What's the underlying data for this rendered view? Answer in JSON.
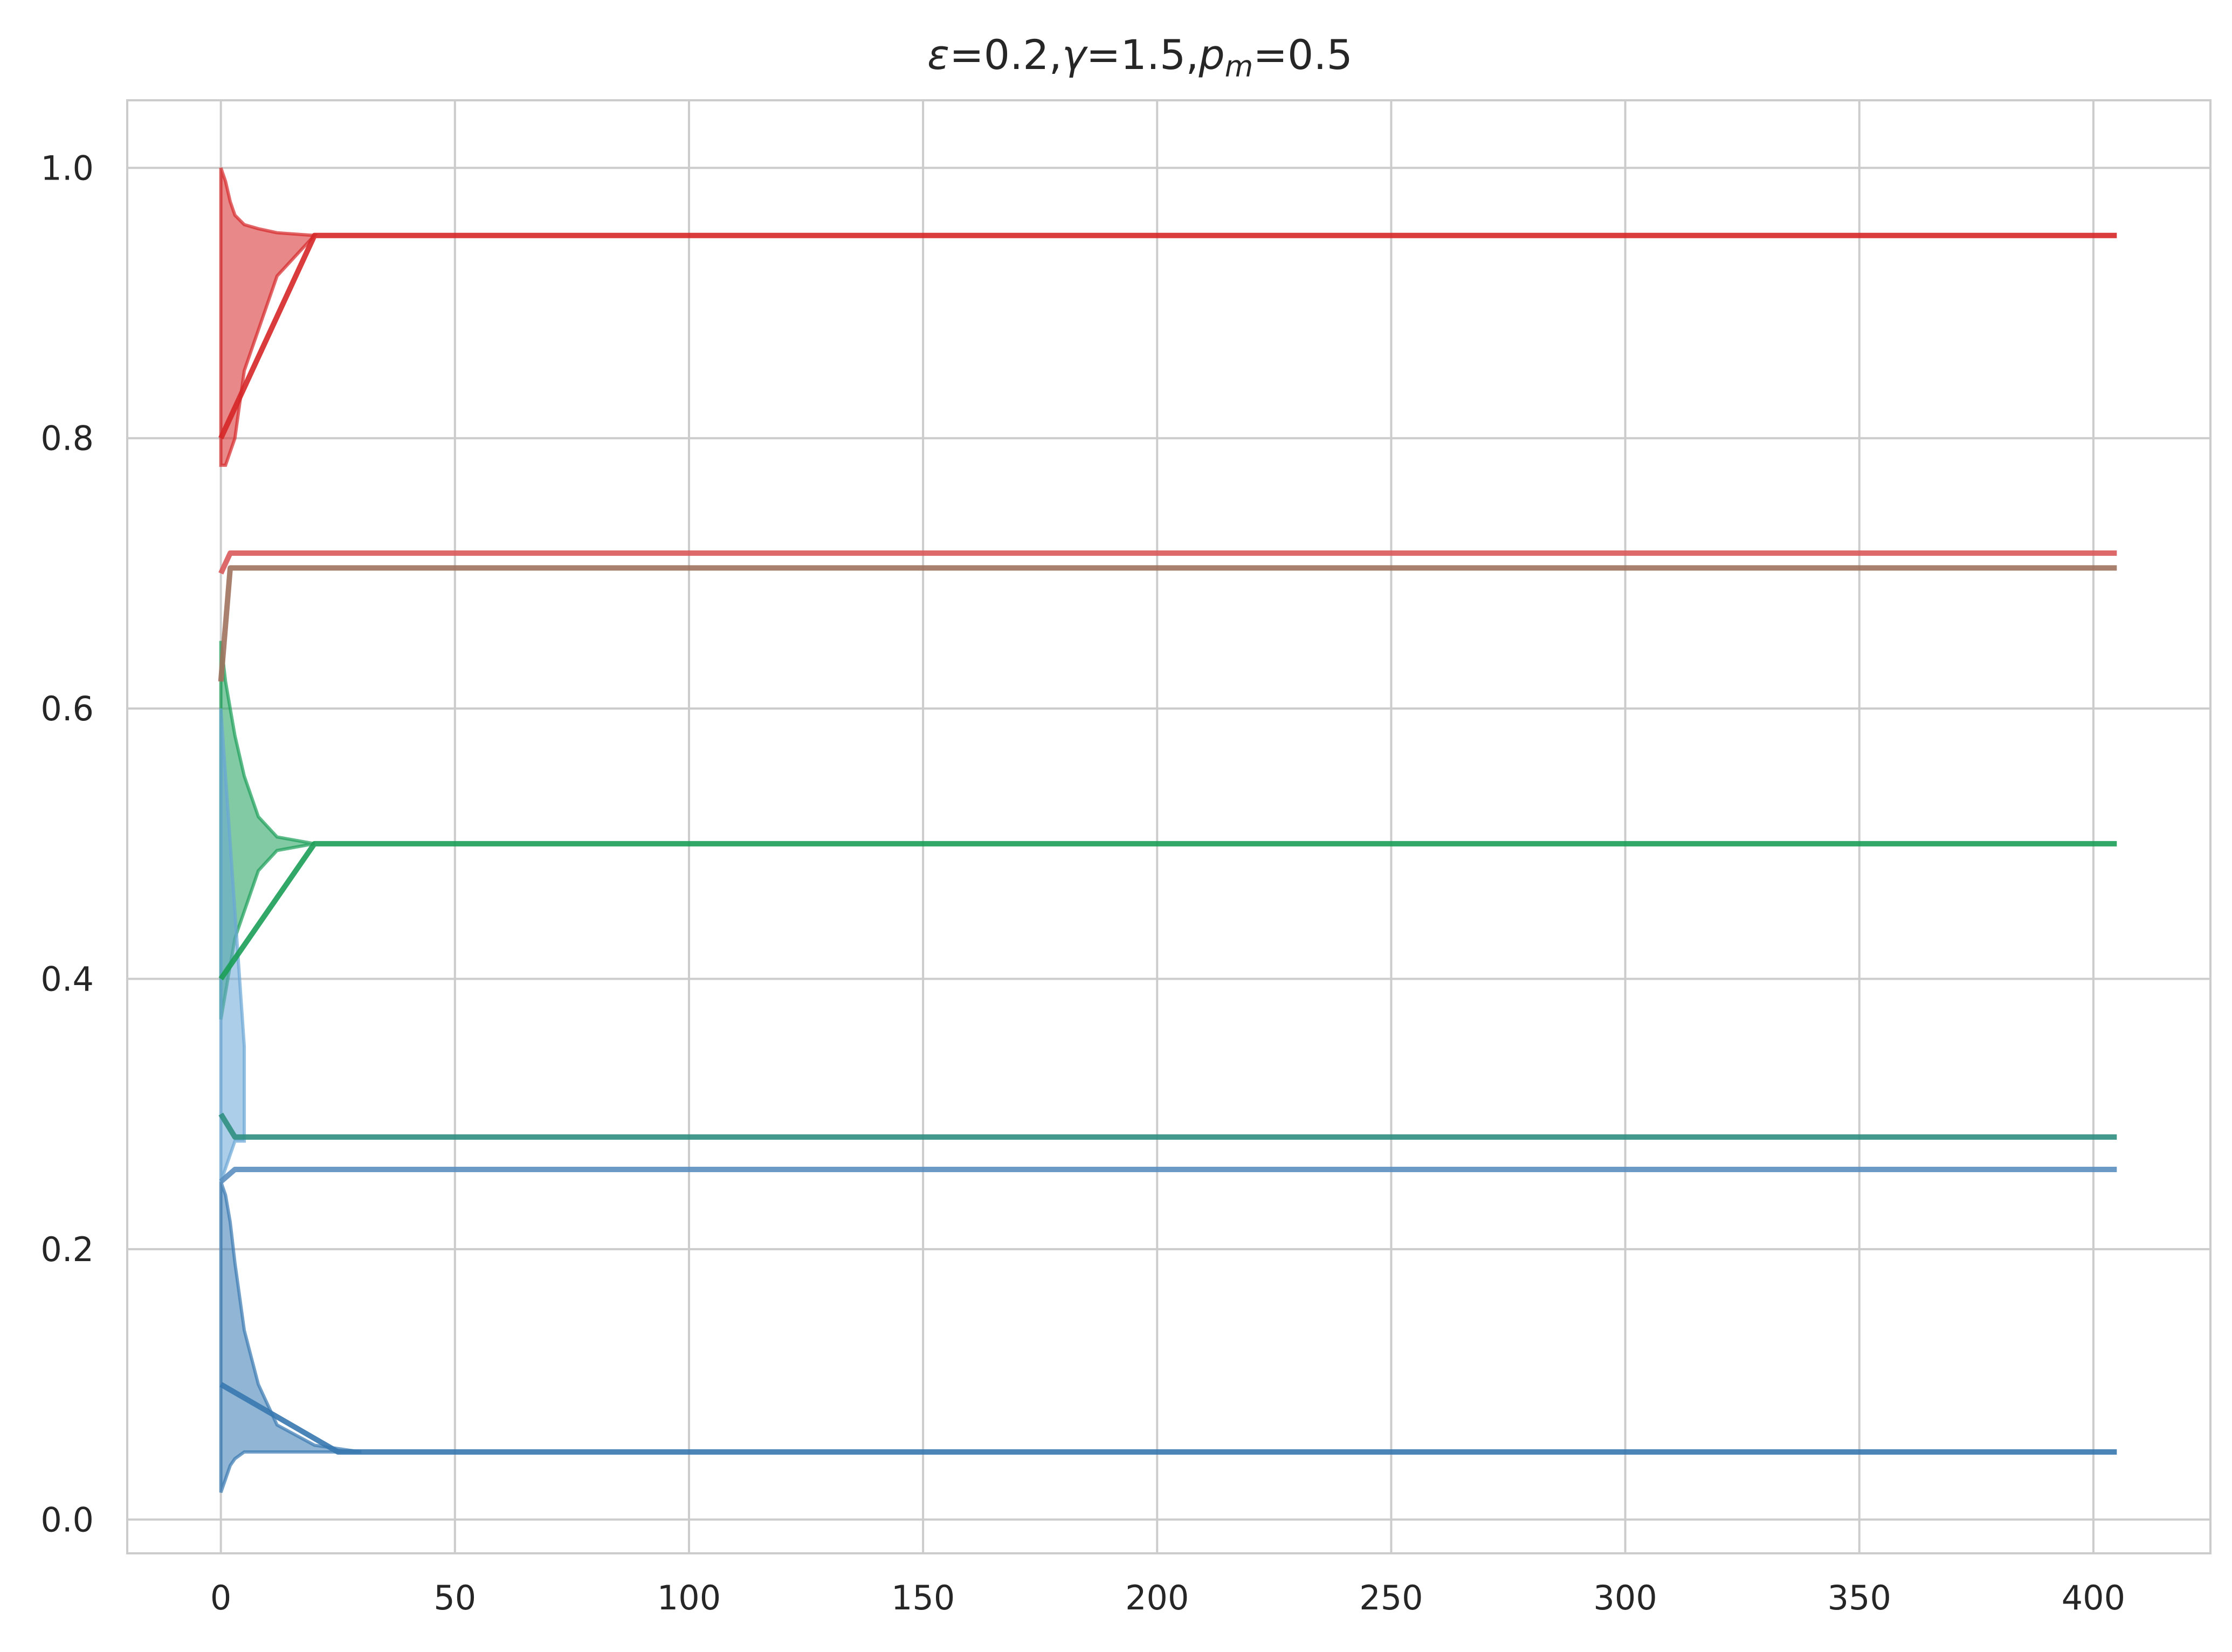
{
  "chart_data": {
    "type": "line",
    "title": {
      "eps_symbol": "ε",
      "eps_value": "=0.2,",
      "gamma_symbol": "γ",
      "gamma_value": "=1.5,",
      "p_symbol": "p",
      "p_subscript": "m",
      "p_value": "=0.5"
    },
    "xlabel": "",
    "ylabel": "",
    "xlim": [
      -20,
      425
    ],
    "ylim": [
      -0.025,
      1.05
    ],
    "grid": true,
    "legend": "none",
    "x_ticks": [
      0,
      50,
      100,
      150,
      200,
      250,
      300,
      350,
      400
    ],
    "x_tick_labels": [
      "0",
      "50",
      "100",
      "150",
      "200",
      "250",
      "300",
      "350",
      "400"
    ],
    "y_ticks": [
      0.0,
      0.2,
      0.4,
      0.6,
      0.8,
      1.0
    ],
    "y_tick_labels": [
      "0.0",
      "0.2",
      "0.4",
      "0.6",
      "0.8",
      "1.0"
    ],
    "steady_state_series": [
      {
        "color": "#d62728",
        "final_value": 0.95,
        "start": [
          0,
          0.8
        ],
        "settle_x": 20
      },
      {
        "color": "#d9595b",
        "final_value": 0.715,
        "start": [
          0,
          0.7
        ],
        "settle_x": 2
      },
      {
        "color": "#a0725e",
        "final_value": 0.704,
        "start": [
          0,
          0.62
        ],
        "settle_x": 2
      },
      {
        "color": "#1b9e57",
        "final_value": 0.5,
        "start": [
          0,
          0.4
        ],
        "settle_x": 20
      },
      {
        "color": "#2f8f80",
        "final_value": 0.283,
        "start": [
          0,
          0.3
        ],
        "settle_x": 3
      },
      {
        "color": "#5a8fbf",
        "final_value": 0.259,
        "start": [
          0,
          0.25
        ],
        "settle_x": 3
      },
      {
        "color": "#3778b0",
        "final_value": 0.05,
        "start": [
          0,
          0.1
        ],
        "settle_x": 25
      }
    ],
    "transient_bands": [
      {
        "color": "#d62728",
        "x": [
          0,
          1,
          2,
          3,
          5,
          8,
          12,
          20
        ],
        "upper": [
          1.0,
          0.99,
          0.975,
          0.965,
          0.958,
          0.955,
          0.952,
          0.95
        ],
        "lower": [
          0.78,
          0.78,
          0.79,
          0.8,
          0.85,
          0.88,
          0.92,
          0.95
        ]
      },
      {
        "color": "#1b9e57",
        "x": [
          0,
          1,
          2,
          3,
          5,
          8,
          12,
          20
        ],
        "upper": [
          0.65,
          0.62,
          0.6,
          0.58,
          0.55,
          0.52,
          0.505,
          0.5
        ],
        "lower": [
          0.37,
          0.39,
          0.41,
          0.43,
          0.45,
          0.48,
          0.495,
          0.5
        ]
      },
      {
        "color": "#3778b0",
        "x": [
          0,
          1,
          2,
          3,
          5,
          8,
          12,
          20,
          30
        ],
        "upper": [
          0.25,
          0.24,
          0.22,
          0.19,
          0.14,
          0.1,
          0.07,
          0.055,
          0.05
        ],
        "lower": [
          0.02,
          0.03,
          0.04,
          0.045,
          0.05,
          0.05,
          0.05,
          0.05,
          0.05
        ]
      },
      {
        "color": "#6aa6d6",
        "x": [
          0,
          1,
          2,
          3,
          4,
          5
        ],
        "upper": [
          0.6,
          0.55,
          0.5,
          0.45,
          0.4,
          0.35
        ],
        "lower": [
          0.25,
          0.26,
          0.27,
          0.28,
          0.28,
          0.28
        ]
      }
    ],
    "x_end": 405
  }
}
